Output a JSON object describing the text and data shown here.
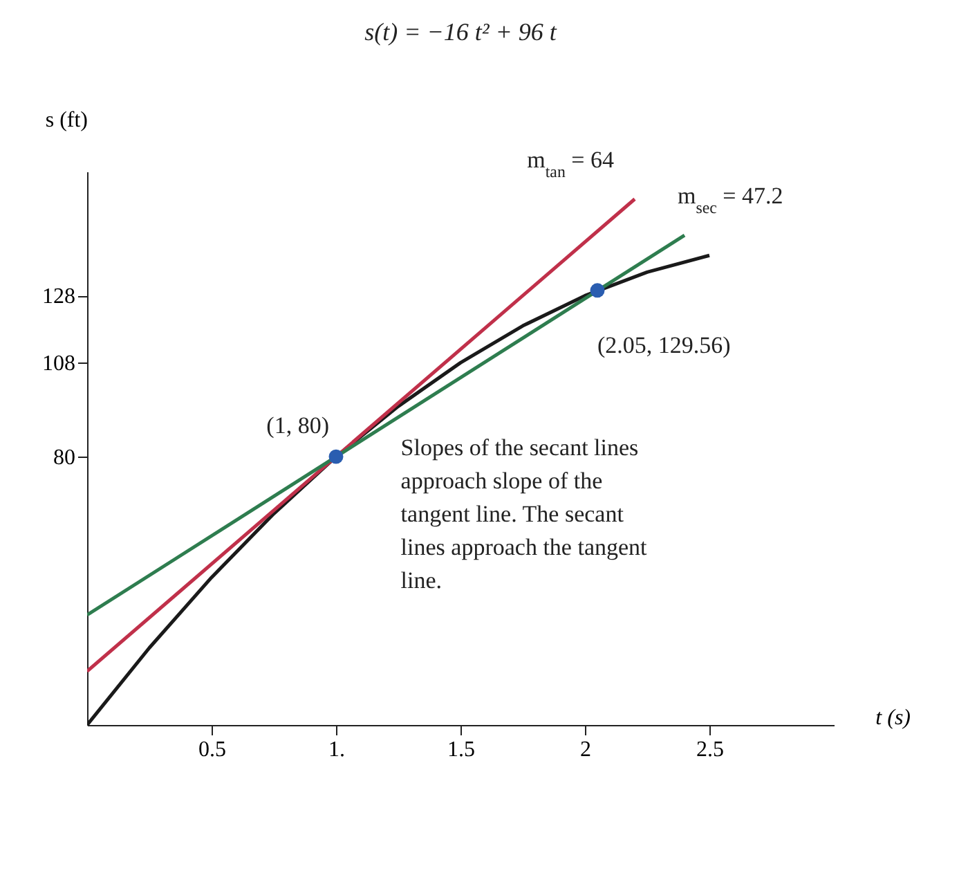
{
  "chart_data": {
    "type": "line",
    "title": "s(t) = −16 t² + 96 t",
    "xlabel": "t (s)",
    "ylabel": "s (ft)",
    "xlim": [
      0,
      3
    ],
    "ylim": [
      0,
      165
    ],
    "xticks": [
      0.5,
      {
        "value": 1,
        "label": "1."
      },
      1.5,
      2,
      2.5
    ],
    "yticks": [
      80,
      108,
      128
    ],
    "series": [
      {
        "type": "line",
        "color": "#1a1a1a",
        "x": [
          0,
          0.25,
          0.5,
          0.75,
          1,
          1.25,
          1.5,
          1.75,
          2,
          2.25,
          2.5
        ],
        "values": [
          0,
          23,
          44,
          63,
          80,
          95,
          108,
          119,
          128,
          135,
          140
        ]
      },
      {
        "type": "line",
        "name": "m$_{tan}$ = 64",
        "color": "#c0304a",
        "x": [
          0,
          2.2
        ],
        "values": [
          16,
          156.8
        ]
      },
      {
        "type": "line",
        "name": "m$_{sec}$ = 47.2",
        "color": "#2e7d4f",
        "x": [
          0,
          2.4
        ],
        "values": [
          32.8,
          146
        ]
      },
      {
        "type": "scatter",
        "color": "#2a5db0",
        "x": [
          1,
          2.05
        ],
        "values": [
          80,
          129.56
        ]
      }
    ],
    "annotations": [
      {
        "text": "(1, 80)",
        "x": 1,
        "y": 80
      },
      {
        "text": "(2.05, 129.56)",
        "x": 2.05,
        "y": 129.56
      },
      "Slopes of the secant lines approach slope of the tangent line. The secant lines approach the tangent line."
    ]
  }
}
